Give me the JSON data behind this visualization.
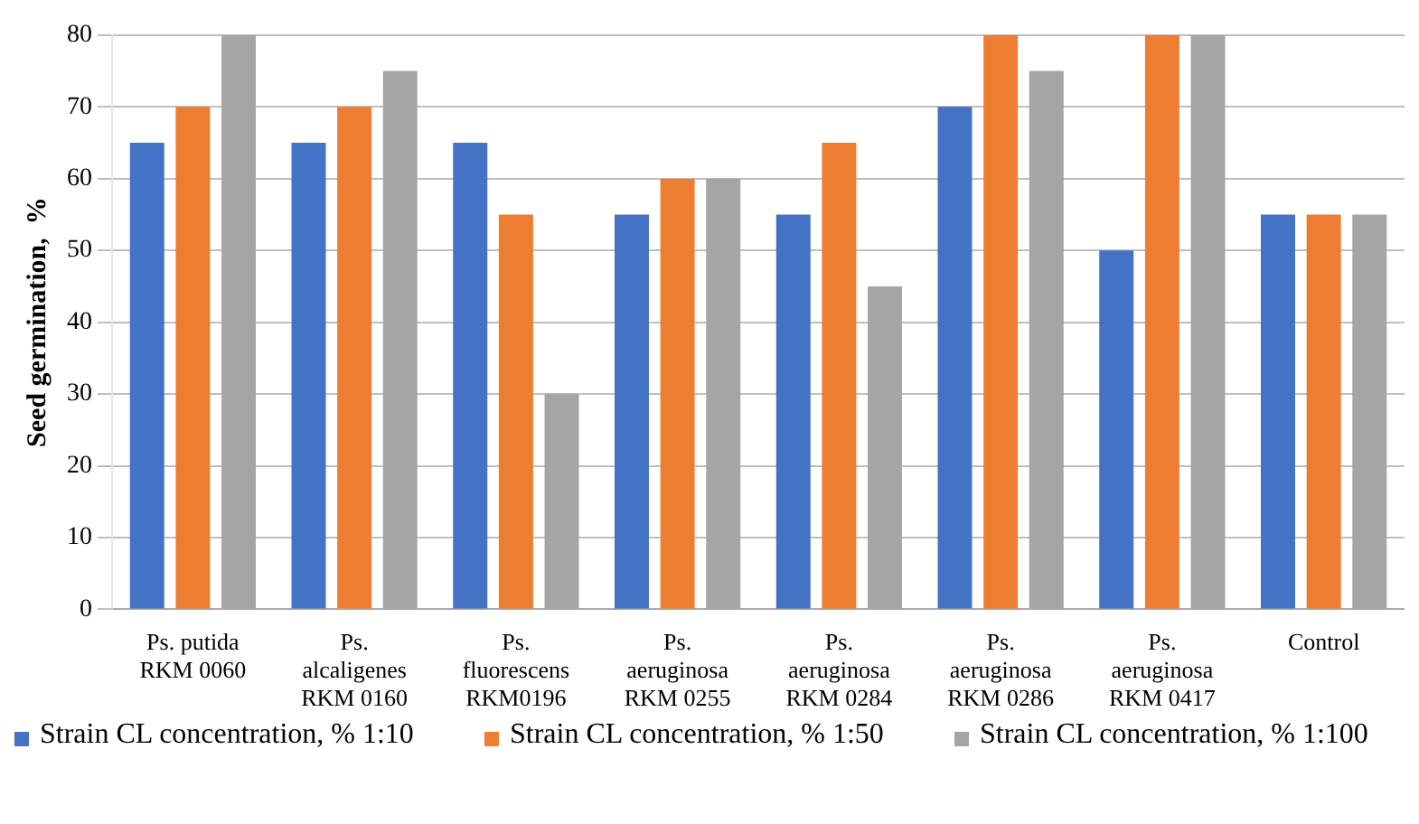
{
  "chart_data": {
    "type": "bar",
    "ylabel": "Seed germination,  %",
    "categories": [
      "Ps. putida\nRKM 0060",
      "Ps.\nalcaligenes\nRKM 0160",
      "Ps.\nfluorescens\nRKM0196",
      "Ps.\naeruginosa\nRKM 0255",
      "Ps.\naeruginosa\nRKM 0284",
      "Ps.\naeruginosa\nRKM 0286",
      "Ps.\naeruginosa\nRKM 0417",
      "Control"
    ],
    "series": [
      {
        "name": "Strain CL concentration, % 1:10",
        "color": "#4472c4",
        "values": [
          65,
          65,
          65,
          55,
          55,
          70,
          50,
          55
        ]
      },
      {
        "name": "Strain CL concentration, % 1:50",
        "color": "#ed7d31",
        "values": [
          70,
          70,
          55,
          60,
          65,
          80,
          80,
          55
        ]
      },
      {
        "name": "Strain CL concentration, % 1:100",
        "color": "#a5a5a5",
        "values": [
          80,
          75,
          30,
          60,
          45,
          75,
          80,
          55
        ]
      }
    ],
    "ylim": [
      0,
      80
    ],
    "yticks": [
      0,
      10,
      20,
      30,
      40,
      50,
      60,
      70,
      80
    ],
    "grid": "y",
    "legend": "bottom"
  }
}
